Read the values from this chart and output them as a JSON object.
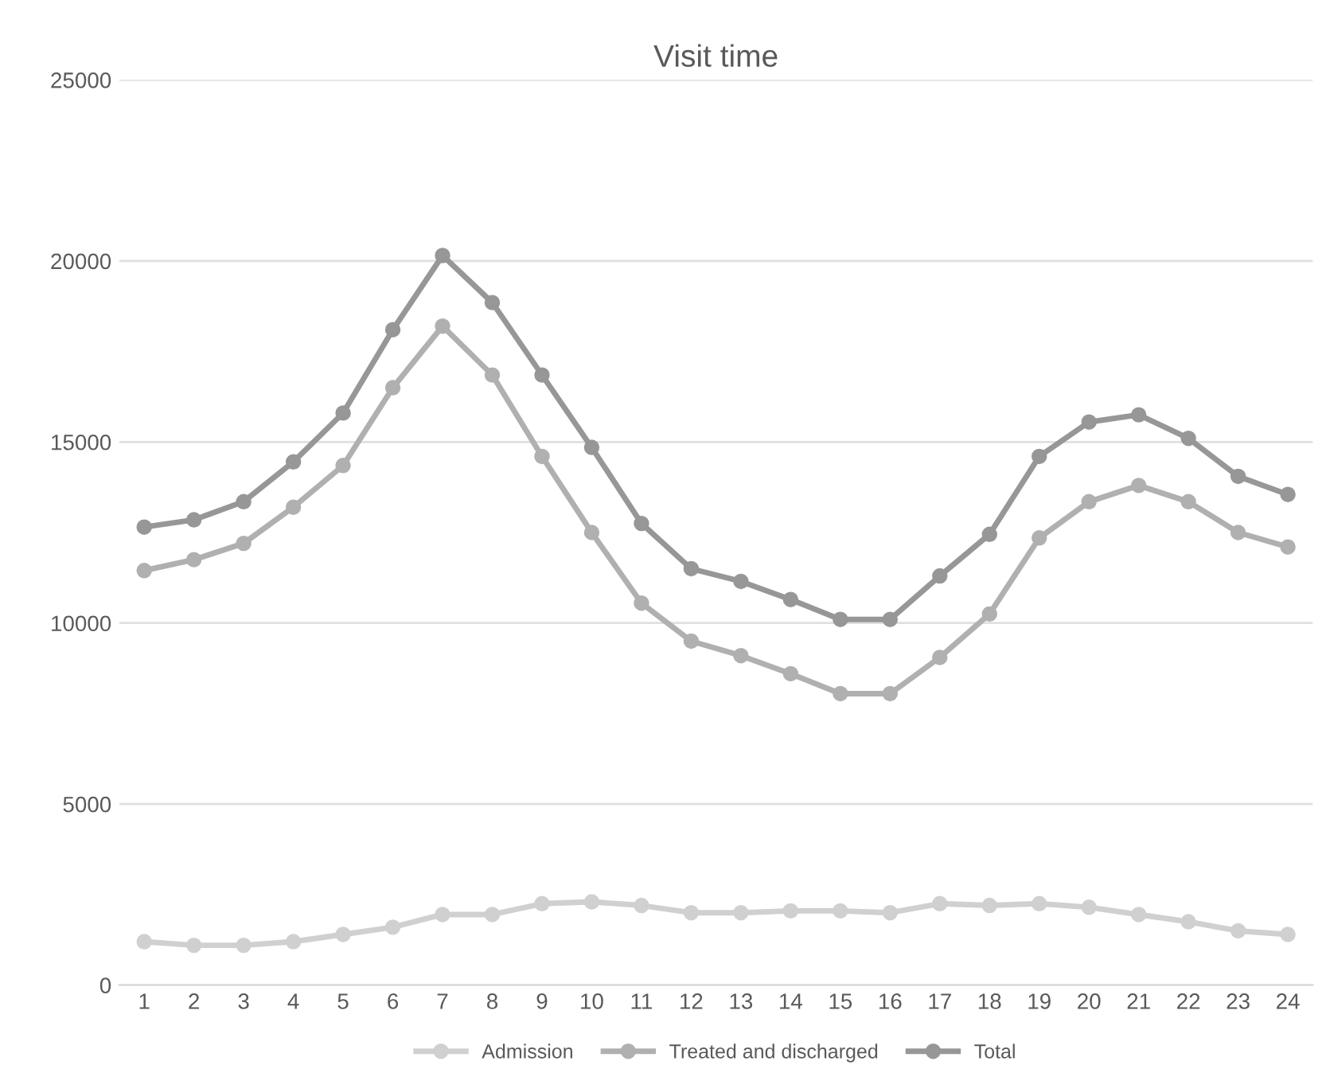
{
  "chart_data": {
    "type": "line",
    "title": "Visit time",
    "categories": [
      "1",
      "2",
      "3",
      "4",
      "5",
      "6",
      "7",
      "8",
      "9",
      "10",
      "11",
      "12",
      "13",
      "14",
      "15",
      "16",
      "17",
      "18",
      "19",
      "20",
      "21",
      "22",
      "23",
      "24"
    ],
    "series": [
      {
        "name": "Admission",
        "color": "#d0d0d0",
        "values": [
          1200,
          1100,
          1100,
          1200,
          1400,
          1600,
          1950,
          1950,
          2250,
          2300,
          2200,
          2000,
          2000,
          2050,
          2050,
          2000,
          2250,
          2200,
          2250,
          2150,
          1950,
          1750,
          1500,
          1400
        ]
      },
      {
        "name": "Treated and discharged",
        "color": "#b0b0b0",
        "values": [
          11450,
          11750,
          12200,
          13200,
          14350,
          16500,
          18200,
          16850,
          14600,
          12500,
          10550,
          9500,
          9100,
          8600,
          8050,
          8050,
          9050,
          10250,
          12350,
          13350,
          13800,
          13350,
          12500,
          12100
        ]
      },
      {
        "name": "Total",
        "color": "#979797",
        "values": [
          12650,
          12850,
          13350,
          14450,
          15800,
          18100,
          20150,
          18850,
          16850,
          14850,
          12750,
          11500,
          11150,
          10650,
          10100,
          10100,
          11300,
          12450,
          14600,
          15550,
          15750,
          15100,
          14050,
          13550
        ]
      }
    ],
    "ylim": [
      0,
      25000
    ],
    "yticks": [
      0,
      5000,
      10000,
      15000,
      20000,
      25000
    ],
    "grid": "y",
    "legend": "bottom",
    "marker": "circle",
    "line_style": "solid"
  }
}
